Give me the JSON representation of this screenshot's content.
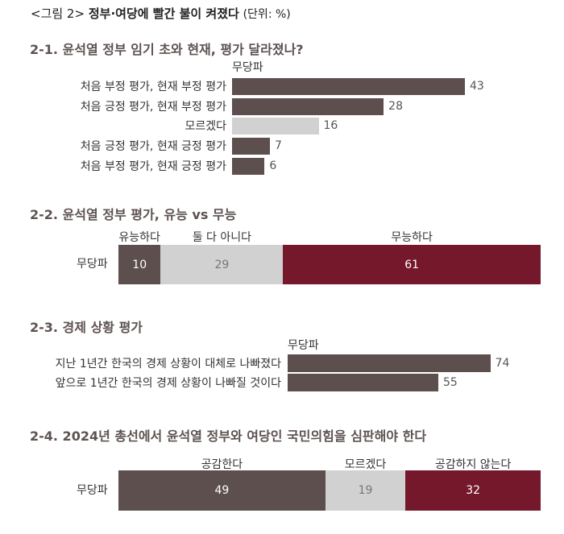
{
  "figure": {
    "prefix": "<그림 2>",
    "title": "정부·여당에 빨간 불이 켜졌다",
    "unit": "(단위: %)"
  },
  "colors": {
    "dark": "#5e4f4f",
    "light": "#d1d1d1",
    "red": "#75182c"
  },
  "chart_data": [
    {
      "type": "bar",
      "orientation": "horizontal",
      "title": "2-1. 윤석열 정부 임기 초와 현재, 평가 달라졌나?",
      "series_label": "무당파",
      "categories": [
        "처음 부정 평가, 현재 부정 평가",
        "처음 긍정 평가, 현재 부정 평가",
        "모르겠다",
        "처음 긍정 평가, 현재 긍정 평가",
        "처음 부정 평가, 현재 긍정 평가"
      ],
      "values": [
        43,
        28,
        16,
        7,
        6
      ],
      "highlight": [
        false,
        false,
        true,
        false,
        false
      ]
    },
    {
      "type": "bar",
      "stacked": true,
      "title": "2-2. 윤석열 정부 평가, 유능 vs 무능",
      "row_label": "무당파",
      "segments": [
        {
          "name": "유능하다",
          "value": 10,
          "color": "#5e4f4f"
        },
        {
          "name": "둘 다 아니다",
          "value": 29,
          "color": "#d1d1d1"
        },
        {
          "name": "무능하다",
          "value": 61,
          "color": "#75182c"
        }
      ]
    },
    {
      "type": "bar",
      "orientation": "horizontal",
      "title": "2-3. 경제 상황 평가",
      "series_label": "무당파",
      "categories": [
        "지난 1년간 한국의 경제 상황이 대체로 나빠졌다",
        "앞으로 1년간 한국의 경제 상황이 나빠질 것이다"
      ],
      "values": [
        74,
        55
      ]
    },
    {
      "type": "bar",
      "stacked": true,
      "title": "2-4. 2024년 총선에서 윤석열 정부와 여당인 국민의힘을 심판해야 한다",
      "row_label": "무당파",
      "segments": [
        {
          "name": "공감한다",
          "value": 49,
          "color": "#5e4f4f"
        },
        {
          "name": "모르겠다",
          "value": 19,
          "color": "#d1d1d1"
        },
        {
          "name": "공감하지 않는다",
          "value": 32,
          "color": "#75182c"
        }
      ]
    }
  ]
}
